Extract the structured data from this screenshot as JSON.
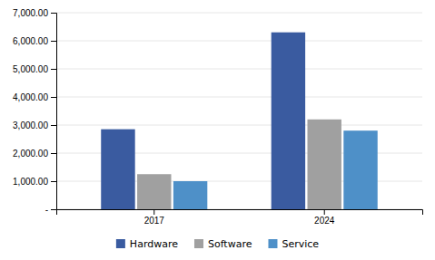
{
  "chart_data": {
    "type": "bar",
    "categories": [
      "2017",
      "2024"
    ],
    "series": [
      {
        "name": "Hardware",
        "values": [
          2850,
          6300
        ],
        "color": "#3A5BA0"
      },
      {
        "name": "Software",
        "values": [
          1250,
          3200
        ],
        "color": "#A0A0A0"
      },
      {
        "name": "Service",
        "values": [
          1000,
          2800
        ],
        "color": "#4E90C8"
      }
    ],
    "ylim": [
      0,
      7000
    ],
    "yticks": [
      {
        "value": 0,
        "label": "-"
      },
      {
        "value": 1000,
        "label": "1,000.00"
      },
      {
        "value": 2000,
        "label": "2,000.00"
      },
      {
        "value": 3000,
        "label": "3,000.00"
      },
      {
        "value": 4000,
        "label": "4,000.00"
      },
      {
        "value": 5000,
        "label": "5,000.00"
      },
      {
        "value": 6000,
        "label": "6,000.00"
      },
      {
        "value": 7000,
        "label": "7,000.00"
      }
    ],
    "grid": true,
    "legend": "bottom"
  }
}
